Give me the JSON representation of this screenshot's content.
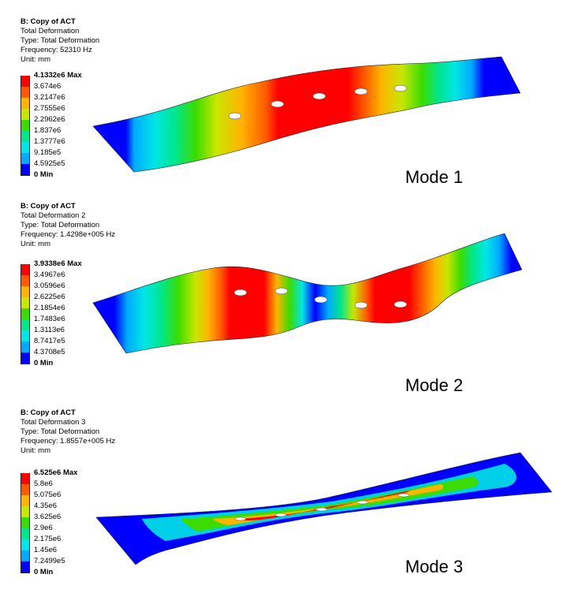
{
  "panels": [
    {
      "info": {
        "title": "B: Copy of ACT",
        "result": "Total Deformation",
        "type": "Type: Total Deformation",
        "frequency": "Frequency: 52310 Hz",
        "unit": "Unit: mm"
      },
      "legend": [
        "4.1332e6 Max",
        "3.674e6",
        "3.2147e6",
        "2.7555e6",
        "2.2962e6",
        "1.837e6",
        "1.3777e6",
        "9.185e5",
        "4.5925e5",
        "0 Min"
      ],
      "mode_label": "Mode 1"
    },
    {
      "info": {
        "title": "B: Copy of ACT",
        "result": "Total Deformation 2",
        "type": "Type: Total Deformation",
        "frequency": "Frequency: 1.4298e+005 Hz",
        "unit": "Unit: mm"
      },
      "legend": [
        "3.9338e6 Max",
        "3.4967e6",
        "3.0596e6",
        "2.6225e6",
        "2.1854e6",
        "1.7483e6",
        "1.3113e6",
        "8.7417e5",
        "4.3708e5",
        "0 Min"
      ],
      "mode_label": "Mode 2"
    },
    {
      "info": {
        "title": "B: Copy of ACT",
        "result": "Total Deformation 3",
        "type": "Type: Total Deformation",
        "frequency": "Frequency: 1.8557e+005 Hz",
        "unit": "Unit: mm"
      },
      "legend": [
        "6.525e6 Max",
        "5.8e6",
        "5.075e6",
        "4.35e6",
        "3.625e6",
        "2.9e6",
        "2.175e6",
        "1.45e6",
        "7.2499e5",
        "0 Min"
      ],
      "mode_label": "Mode 3"
    }
  ],
  "colors": {
    "scale": [
      "#ff0000",
      "#ff5a00",
      "#ffb400",
      "#c8e600",
      "#3cdc00",
      "#00e68c",
      "#00e6e6",
      "#00aaff",
      "#0000ff"
    ],
    "outline": "#222222"
  }
}
